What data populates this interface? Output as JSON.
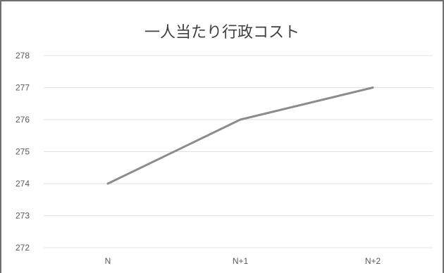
{
  "chart_data": {
    "type": "line",
    "title": "一人当たり行政コスト",
    "xlabel": "",
    "ylabel": "",
    "categories": [
      "N",
      "N+1",
      "N+2"
    ],
    "series": [
      {
        "values": [
          274,
          276,
          277
        ],
        "color": "#8c8c8c"
      }
    ],
    "ylim": [
      272,
      278
    ],
    "yticks": [
      "272",
      "273",
      "274",
      "275",
      "276",
      "277",
      "278"
    ],
    "grid": true,
    "legend": "none"
  }
}
